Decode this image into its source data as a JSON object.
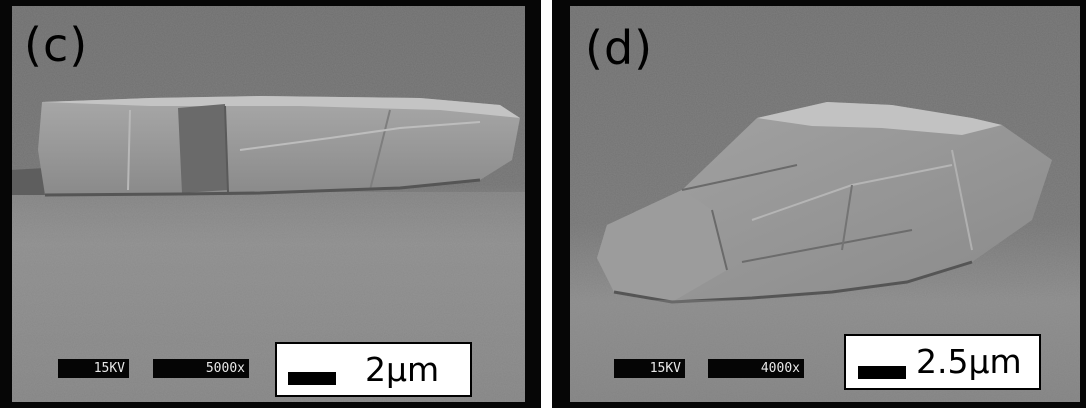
{
  "panels": [
    {
      "label": "(c)",
      "voltage": "15KV",
      "magnification": "5000x",
      "scale": "2μm"
    },
    {
      "label": "(d)",
      "voltage": "15KV",
      "magnification": "4000x",
      "scale": "2.5μm"
    }
  ],
  "colors": {
    "frame": "#060606",
    "background_gray": "#767676",
    "crystal_face": "#9a9a9a",
    "label_text": "#000000",
    "info_text": "#e8e8e8"
  }
}
